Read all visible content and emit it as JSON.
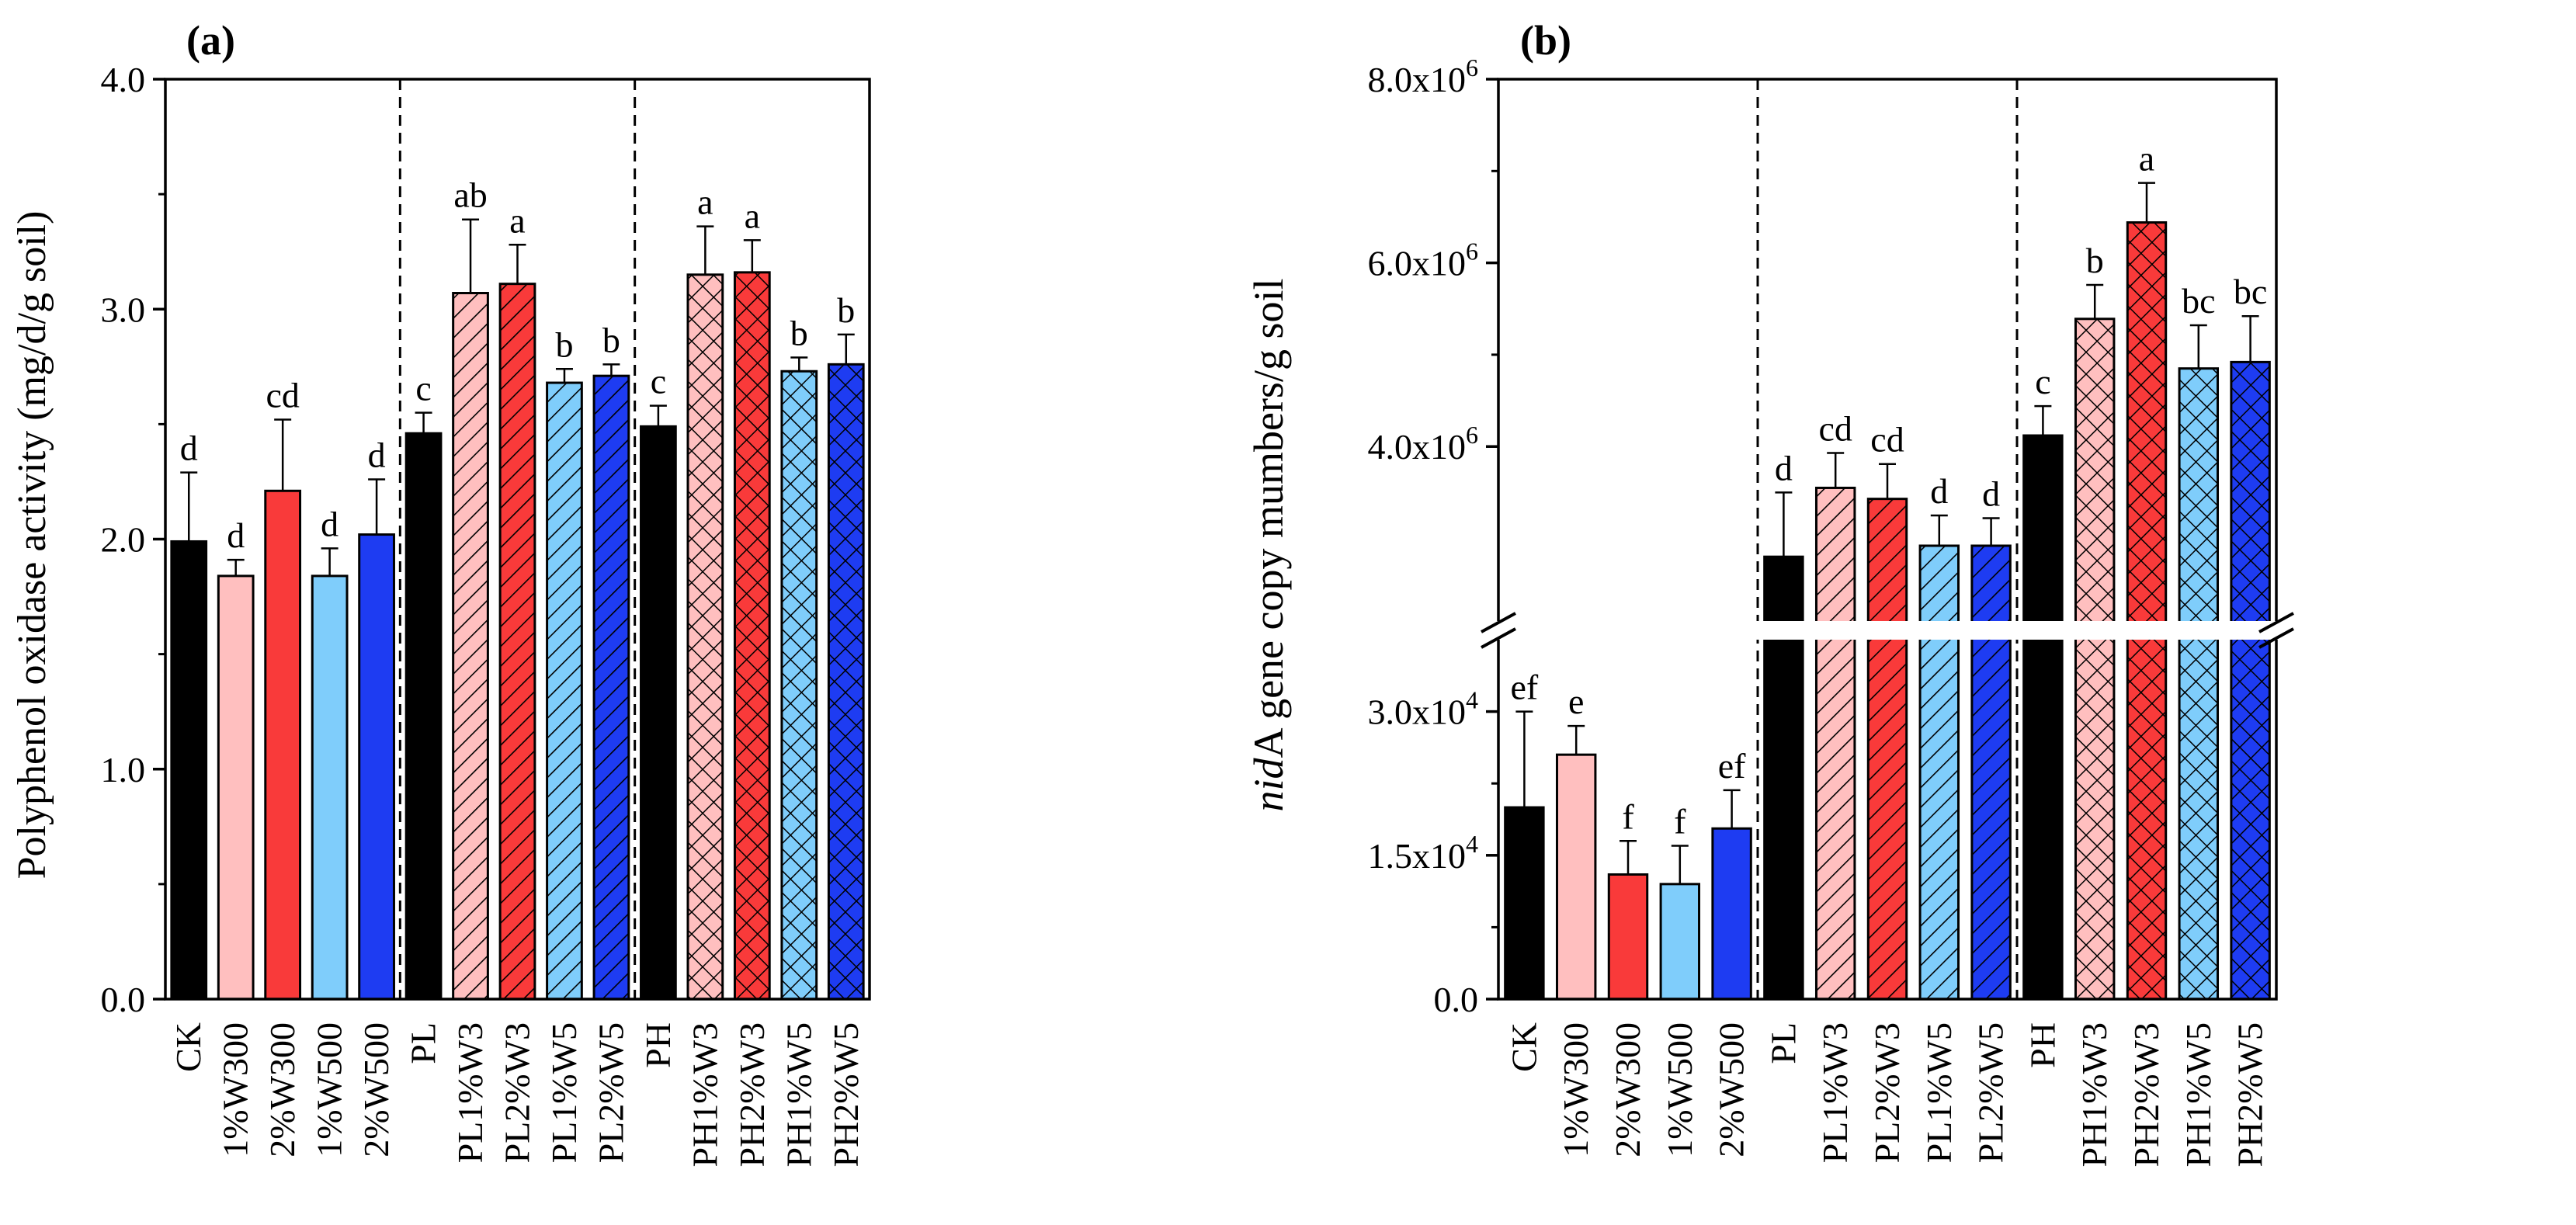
{
  "chart_data": [
    {
      "panel": "(a)",
      "type": "bar",
      "ylabel": "Polyphenol oxidase activity (mg/d/g soil)",
      "ylim": [
        0,
        4.0
      ],
      "yticks": [
        "0.0",
        "1.0",
        "2.0",
        "3.0",
        "4.0"
      ],
      "categories": [
        "CK",
        "1%W300",
        "2%W300",
        "1%W500",
        "2%W500",
        "PL",
        "PL1%W3",
        "PL2%W3",
        "PL1%W5",
        "PL2%W5",
        "PH",
        "PH1%W3",
        "PH2%W3",
        "PH1%W5",
        "PH2%W5"
      ],
      "values": [
        1.99,
        1.84,
        2.21,
        1.84,
        2.02,
        2.46,
        3.07,
        3.11,
        2.68,
        2.71,
        2.49,
        3.15,
        3.16,
        2.73,
        2.76
      ],
      "errors": [
        0.3,
        0.07,
        0.31,
        0.12,
        0.24,
        0.09,
        0.32,
        0.17,
        0.06,
        0.05,
        0.09,
        0.21,
        0.14,
        0.06,
        0.13
      ],
      "letters": [
        "d",
        "d",
        "cd",
        "d",
        "d",
        "c",
        "ab",
        "a",
        "b",
        "b",
        "c",
        "a",
        "a",
        "b",
        "b"
      ],
      "group_separators_after": [
        4,
        9
      ],
      "grid": false
    },
    {
      "panel": "(b)",
      "type": "bar",
      "ylabel_italic": "nid",
      "ylabel_rest": "A gene copy mumbers/g soil",
      "broken_axis": true,
      "lower_segment": {
        "ylim": [
          0,
          37500
        ],
        "ticks": [
          {
            "value": 0,
            "label": "0.0"
          },
          {
            "value": 15000,
            "label": "1.5x10",
            "exp": "4"
          },
          {
            "value": 30000,
            "label": "3.0x10",
            "exp": "4"
          }
        ]
      },
      "upper_segment": {
        "ylim": [
          2100000,
          8000000
        ],
        "ticks": [
          {
            "value": 4000000,
            "label": "4.0x10",
            "exp": "6"
          },
          {
            "value": 6000000,
            "label": "6.0x10",
            "exp": "6"
          },
          {
            "value": 8000000,
            "label": "8.0x10",
            "exp": "6"
          }
        ]
      },
      "categories": [
        "CK",
        "1%W300",
        "2%W300",
        "1%W500",
        "2%W500",
        "PL",
        "PL1%W3",
        "PL2%W3",
        "PL1%W5",
        "PL2%W5",
        "PH",
        "PH1%W3",
        "PH2%W3",
        "PH1%W5",
        "PH2%W5"
      ],
      "values": [
        20000,
        25500,
        13000,
        12000,
        17800,
        2800000,
        3550000,
        3430000,
        2920000,
        2920000,
        4120000,
        5390000,
        6440000,
        4850000,
        4920000
      ],
      "errors": [
        10000,
        3000,
        3500,
        4000,
        4000,
        700000,
        380000,
        380000,
        330000,
        300000,
        320000,
        370000,
        430000,
        470000,
        500000
      ],
      "letters": [
        "ef",
        "e",
        "f",
        "f",
        "ef",
        "d",
        "cd",
        "cd",
        "d",
        "d",
        "c",
        "b",
        "a",
        "bc",
        "bc"
      ],
      "group_separators_after": [
        4,
        9
      ],
      "grid": false
    }
  ],
  "colors": [
    "#000000",
    "#ffbfbf",
    "#f93a3a",
    "#7fcdfb",
    "#1e3cf2"
  ],
  "patterns": [
    "solid",
    "solid",
    "solid",
    "solid",
    "solid",
    "hatch",
    "hatch",
    "hatch",
    "hatch",
    "hatch",
    "cross",
    "cross",
    "cross",
    "cross",
    "cross"
  ]
}
